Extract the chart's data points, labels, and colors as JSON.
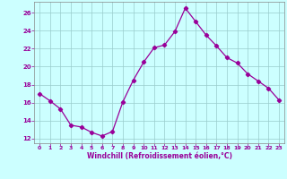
{
  "x": [
    0,
    1,
    2,
    3,
    4,
    5,
    6,
    7,
    8,
    9,
    10,
    11,
    12,
    13,
    14,
    15,
    16,
    17,
    18,
    19,
    20,
    21,
    22,
    23
  ],
  "y": [
    17.0,
    16.2,
    15.3,
    13.5,
    13.3,
    12.7,
    12.3,
    12.8,
    16.1,
    18.5,
    20.5,
    22.1,
    22.4,
    23.9,
    26.5,
    25.0,
    23.5,
    22.3,
    21.0,
    20.4,
    19.2,
    18.4,
    17.6,
    16.3
  ],
  "line_color": "#990099",
  "marker": "D",
  "marker_size": 2.2,
  "bg_color": "#ccffff",
  "grid_color": "#99cccc",
  "tick_color": "#990099",
  "label_color": "#990099",
  "xlabel": "Windchill (Refroidissement éolien,°C)",
  "xlim": [
    -0.5,
    23.5
  ],
  "ylim": [
    11.5,
    27.2
  ],
  "yticks": [
    12,
    14,
    16,
    18,
    20,
    22,
    24,
    26
  ],
  "xticks": [
    0,
    1,
    2,
    3,
    4,
    5,
    6,
    7,
    8,
    9,
    10,
    11,
    12,
    13,
    14,
    15,
    16,
    17,
    18,
    19,
    20,
    21,
    22,
    23
  ]
}
